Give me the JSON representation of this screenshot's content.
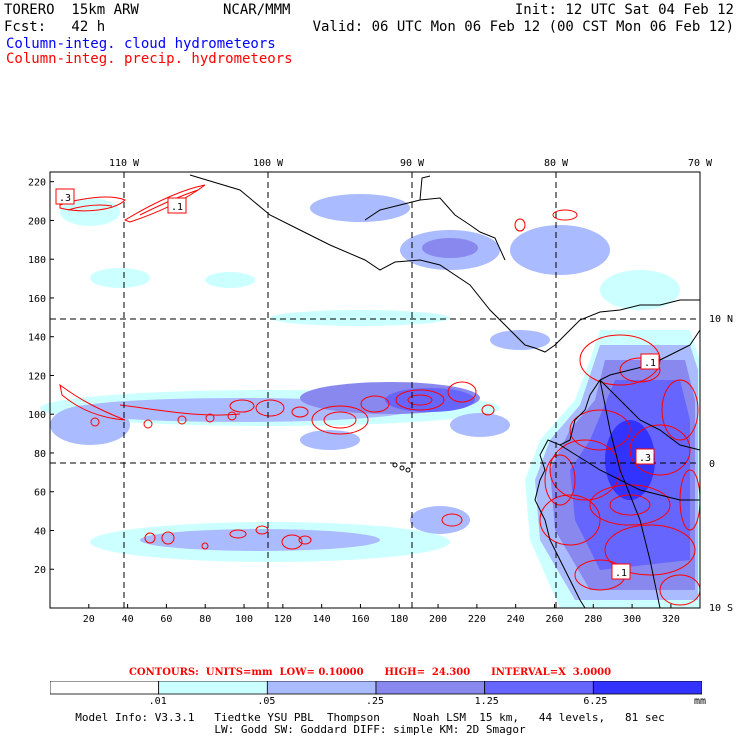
{
  "header": {
    "line1_left": "TORERO  15km ARW",
    "line1_mid": "NCAR/MMM",
    "line1_right": "Init: 12 UTC Sat 04 Feb 12",
    "line2_left": "Fcst:   42 h",
    "line2_right": "Valid: 06 UTC Mon 06 Feb 12 (00 CST Mon 06 Feb 12)",
    "field_cloud": "Column-integ. cloud hydrometeors",
    "field_precip": "Column-integ. precip. hydrometeors"
  },
  "colors": {
    "cloud_label": "#0000ff",
    "precip_label": "#ff0000",
    "coast": "#000000",
    "contour": "#ff0000"
  },
  "map": {
    "lon_labels": [
      "110 W",
      "100 W",
      "90 W",
      "80 W",
      "70 W"
    ],
    "lat_labels": [
      "10 N",
      "0",
      "10 S"
    ],
    "x_ticks": [
      "20",
      "40",
      "60",
      "80",
      "100",
      "120",
      "140",
      "160",
      "180",
      "200",
      "220",
      "240",
      "260",
      "280",
      "300",
      "320"
    ],
    "y_ticks": [
      "20",
      "40",
      "60",
      "80",
      "100",
      "120",
      "140",
      "160",
      "180",
      "200",
      "220"
    ],
    "x_range": [
      0,
      335
    ],
    "y_range": [
      0,
      225
    ],
    "contour_labels": [
      ".3",
      ".1",
      ".1",
      ".3",
      ".1"
    ]
  },
  "contours_line": "CONTOURS:  UNITS=mm  LOW= 0.10000      HIGH=  24.300      INTERVAL=X  3.0000",
  "legend": {
    "labels": [
      ".01",
      ".05",
      ".25",
      "1.25",
      "6.25"
    ],
    "unit": "mm",
    "colors": [
      "#ffffff",
      "#ccffff",
      "#aabbff",
      "#8888ee",
      "#6666ff",
      "#3333ff"
    ]
  },
  "footer": {
    "line1": "Model Info: V3.3.1   Tiedtke YSU PBL  Thompson     Noah LSM  15 km,   44 levels,   81 sec",
    "line2": "LW: Godd SW: Goddard DIFF: simple KM: 2D Smagor"
  }
}
